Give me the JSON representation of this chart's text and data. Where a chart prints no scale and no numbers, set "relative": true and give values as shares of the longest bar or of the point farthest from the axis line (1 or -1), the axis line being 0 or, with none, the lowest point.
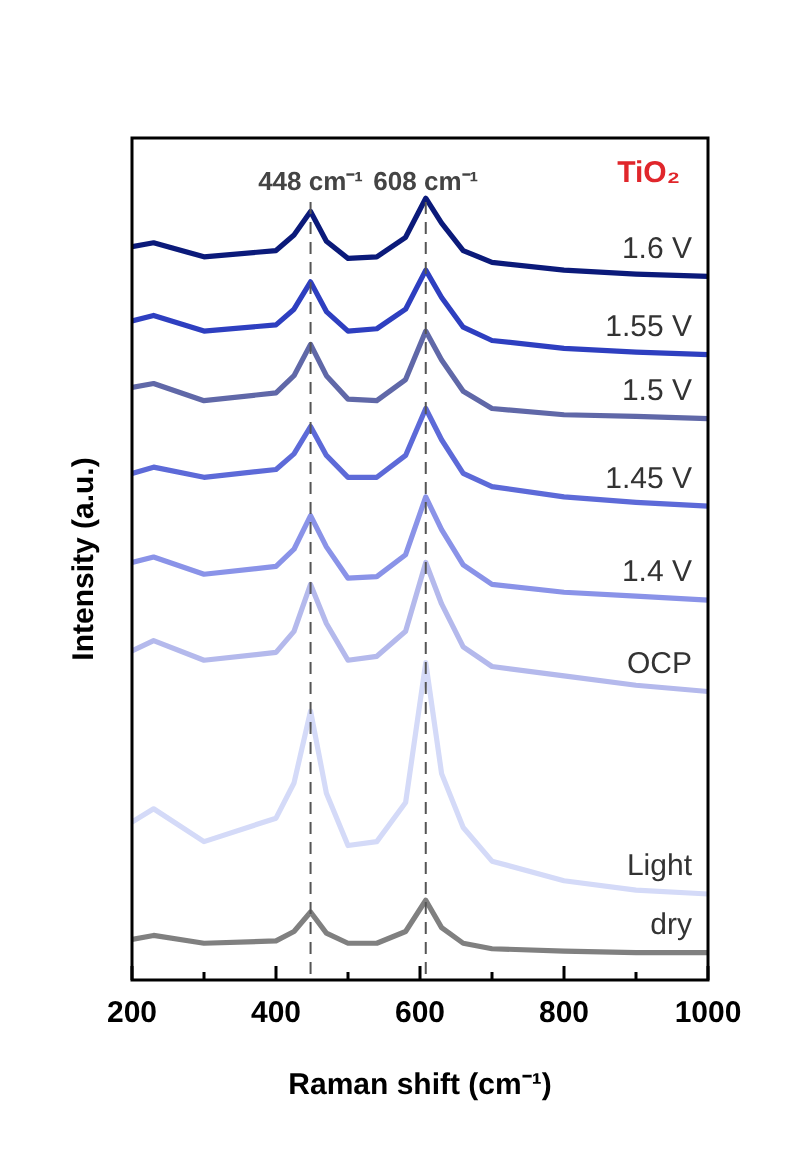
{
  "chart_data": {
    "type": "line",
    "relative": true,
    "xlabel": "Raman shift (cm⁻¹)",
    "ylabel": "Intensity (a.u.)",
    "marker": "none",
    "line_style": "solid",
    "xlim": [
      200,
      1000
    ],
    "xticks": [
      200,
      {
        "value": 300,
        "label": null
      },
      400,
      {
        "value": 500,
        "label": null
      },
      600,
      {
        "value": 700,
        "label": null
      },
      800,
      {
        "value": 900,
        "label": null
      },
      1000
    ],
    "x": [
      200,
      230,
      300,
      400,
      425,
      448,
      470,
      500,
      540,
      580,
      608,
      630,
      660,
      700,
      800,
      900,
      1000
    ],
    "series": [
      {
        "name": "1.6 V",
        "color": "#0b1a7a",
        "values": [
          0.938,
          0.943,
          0.925,
          0.933,
          0.953,
          0.983,
          0.945,
          0.923,
          0.925,
          0.95,
          1.0,
          0.968,
          0.933,
          0.918,
          0.908,
          0.903,
          0.9
        ]
      },
      {
        "name": "1.55 V",
        "color": "#2e3fc0",
        "values": [
          0.843,
          0.85,
          0.83,
          0.838,
          0.858,
          0.893,
          0.855,
          0.83,
          0.833,
          0.858,
          0.908,
          0.873,
          0.835,
          0.818,
          0.808,
          0.803,
          0.8
        ]
      },
      {
        "name": "1.5 V",
        "color": "#6068a8",
        "values": [
          0.758,
          0.763,
          0.741,
          0.751,
          0.773,
          0.813,
          0.773,
          0.743,
          0.741,
          0.768,
          0.83,
          0.793,
          0.753,
          0.731,
          0.723,
          0.721,
          0.718
        ]
      },
      {
        "name": "1.45 V",
        "color": "#5d6ad8",
        "values": [
          0.648,
          0.656,
          0.643,
          0.653,
          0.673,
          0.708,
          0.671,
          0.643,
          0.643,
          0.671,
          0.731,
          0.691,
          0.648,
          0.631,
          0.618,
          0.611,
          0.606
        ]
      },
      {
        "name": "1.4 V",
        "color": "#8a93e8",
        "values": [
          0.534,
          0.541,
          0.519,
          0.529,
          0.551,
          0.594,
          0.554,
          0.514,
          0.516,
          0.544,
          0.618,
          0.576,
          0.531,
          0.506,
          0.496,
          0.491,
          0.486
        ]
      },
      {
        "name": "OCP",
        "color": "#b4b9ec",
        "values": [
          0.421,
          0.434,
          0.409,
          0.419,
          0.446,
          0.506,
          0.456,
          0.409,
          0.414,
          0.446,
          0.534,
          0.481,
          0.426,
          0.401,
          0.389,
          0.377,
          0.369
        ]
      },
      {
        "name": "Light",
        "color": "#d4daf8",
        "values": [
          0.202,
          0.219,
          0.177,
          0.207,
          0.252,
          0.344,
          0.239,
          0.172,
          0.177,
          0.227,
          0.406,
          0.264,
          0.195,
          0.152,
          0.127,
          0.115,
          0.11
        ]
      },
      {
        "name": "dry",
        "color": "#808080",
        "values": [
          0.052,
          0.057,
          0.047,
          0.05,
          0.062,
          0.087,
          0.06,
          0.047,
          0.047,
          0.062,
          0.102,
          0.067,
          0.047,
          0.04,
          0.037,
          0.035,
          0.035
        ]
      }
    ],
    "ref_lines": [
      {
        "axis": "x",
        "value": 448,
        "label": "448 cm⁻¹",
        "line_style": "dashed",
        "color": "#555555"
      },
      {
        "axis": "x",
        "value": 608,
        "label": "608 cm⁻¹",
        "line_style": "dashed",
        "color": "#555555"
      }
    ],
    "annotations": [
      "TiO₂"
    ]
  }
}
